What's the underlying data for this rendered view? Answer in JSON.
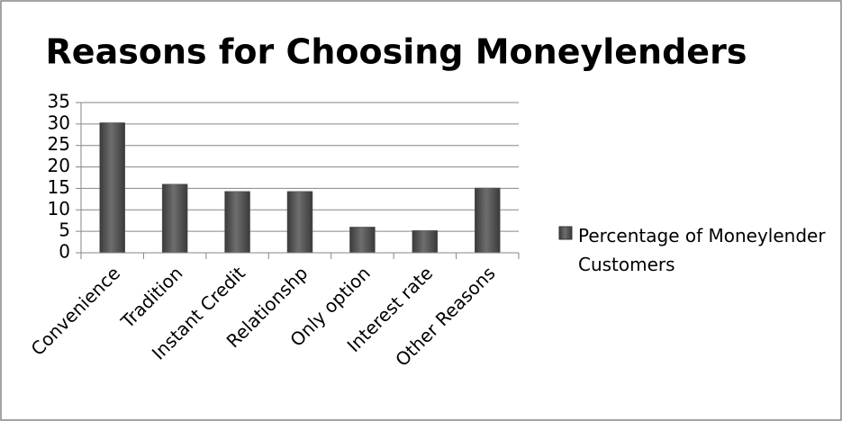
{
  "chart_data": {
    "type": "bar",
    "title": "Reasons for Choosing Moneylenders",
    "categories": [
      "Convenience",
      "Tradition",
      "Instant Credit",
      "Relationshp",
      "Only option",
      "Interest rate",
      "Other Reasons"
    ],
    "series": [
      {
        "name": "Percentage of Moneylender Customers",
        "color": "#595959",
        "values": [
          30.3,
          16,
          14.3,
          14.3,
          6,
          5.2,
          15.1
        ]
      }
    ],
    "ylim": [
      0,
      35
    ],
    "yticks": [
      0,
      5,
      10,
      15,
      20,
      25,
      30,
      35
    ],
    "grid": true,
    "legend": "right"
  }
}
